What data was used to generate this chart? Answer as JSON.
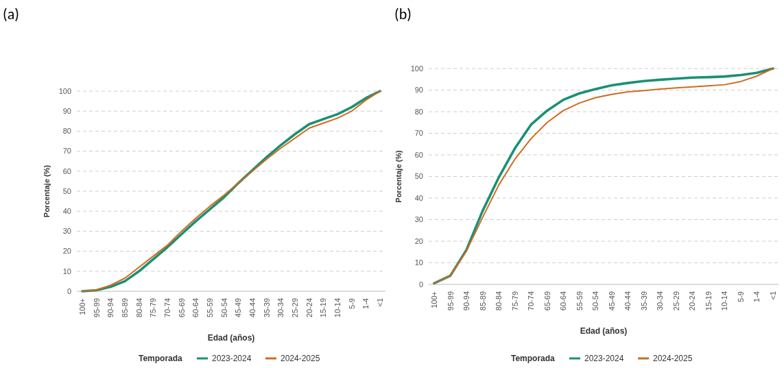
{
  "chart_data": [
    {
      "type": "line",
      "title": "(a)",
      "xlabel": "Edad (años)",
      "ylabel": "Porcentaje (%)",
      "legend_title": "Temporada",
      "legend": "bottom",
      "grid": "y",
      "marker": "none",
      "line_style": "solid",
      "categories": [
        "100+",
        "95-99",
        "90-94",
        "85-89",
        "80-84",
        "75-79",
        "70-74",
        "65-69",
        "60-64",
        "55-59",
        "50-54",
        "45-49",
        "40-44",
        "35-39",
        "30-34",
        "25-29",
        "20-24",
        "15-19",
        "10-14",
        "5-9",
        "1-4",
        "<1"
      ],
      "ylim": [
        0,
        100
      ],
      "yticks": [
        0,
        10,
        20,
        30,
        40,
        50,
        60,
        70,
        80,
        90,
        100
      ],
      "series": [
        {
          "name": "2023-2024",
          "color": "#1a9073",
          "values": [
            0,
            0.5,
            2.2,
            5,
            10,
            16,
            22,
            28.5,
            35,
            41,
            47,
            54,
            60.5,
            67,
            73,
            78.5,
            83.5,
            86,
            88.5,
            92,
            96.5,
            100
          ]
        },
        {
          "name": "2024-2025",
          "color": "#d2691e",
          "values": [
            0,
            0.7,
            3,
            6.5,
            12,
            17.5,
            23,
            30,
            36.5,
            42.5,
            48,
            54,
            60,
            66,
            71.5,
            76.5,
            81.5,
            84,
            86.5,
            90,
            95.5,
            100
          ]
        }
      ]
    },
    {
      "type": "line",
      "title": "(b)",
      "xlabel": "Edad (años)",
      "ylabel": "Porcentaje (%)",
      "legend_title": "Temporada",
      "legend": "bottom",
      "grid": "y",
      "marker": "none",
      "line_style": "solid",
      "categories": [
        "100+",
        "95-99",
        "90-94",
        "85-89",
        "80-84",
        "75-79",
        "70-74",
        "65-69",
        "60-64",
        "55-59",
        "50-54",
        "45-49",
        "40-44",
        "35-39",
        "30-34",
        "25-29",
        "20-24",
        "15-19",
        "10-14",
        "5-9",
        "1-4",
        "<1"
      ],
      "ylim": [
        0,
        100
      ],
      "yticks": [
        0,
        10,
        20,
        30,
        40,
        50,
        60,
        70,
        80,
        90,
        100
      ],
      "series": [
        {
          "name": "2023-2024",
          "color": "#1a9073",
          "values": [
            0.5,
            4,
            16,
            34,
            49.5,
            63,
            74,
            80.5,
            85.5,
            88.5,
            90.5,
            92.2,
            93.3,
            94.2,
            94.8,
            95.3,
            95.8,
            96,
            96.3,
            97,
            98,
            100
          ]
        },
        {
          "name": "2024-2025",
          "color": "#d2691e",
          "values": [
            0.5,
            4,
            15.5,
            31,
            46,
            58,
            67.5,
            75,
            80.5,
            84,
            86.5,
            88,
            89.2,
            89.8,
            90.5,
            91,
            91.5,
            92,
            92.5,
            94,
            96.5,
            100
          ]
        }
      ]
    }
  ]
}
